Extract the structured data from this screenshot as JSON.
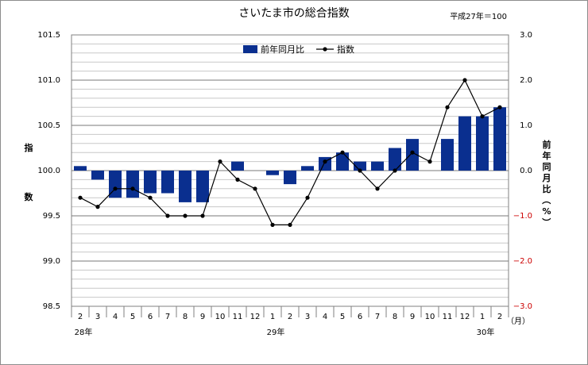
{
  "chart_data": {
    "type": "bar+line",
    "title": "さいたま市の総合指数",
    "base_note": "平成27年＝100",
    "categories": [
      "2",
      "3",
      "4",
      "5",
      "6",
      "7",
      "8",
      "9",
      "10",
      "11",
      "12",
      "1",
      "2",
      "3",
      "4",
      "5",
      "6",
      "7",
      "8",
      "9",
      "10",
      "11",
      "12",
      "1",
      "2"
    ],
    "year_labels": [
      {
        "label": "28年",
        "at_index": 0
      },
      {
        "label": "29年",
        "at_index": 11
      },
      {
        "label": "30年",
        "at_index": 23
      }
    ],
    "x_unit": "（月）",
    "ylabel_left": "指数",
    "ylabel_right": "前年同月比（%）",
    "left_axis": {
      "min": 98.5,
      "max": 101.5,
      "ticks": [
        "98.5",
        "99.0",
        "99.5",
        "100.0",
        "100.5",
        "101.0",
        "101.5"
      ]
    },
    "right_axis": {
      "min": -3.0,
      "max": 3.0,
      "ticks": [
        "−3.0",
        "−2.0",
        "−1.0",
        "0.0",
        "1.0",
        "2.0",
        "3.0"
      ]
    },
    "series": [
      {
        "name": "前年同月比",
        "kind": "bar",
        "axis": "left",
        "color": "#0a2f8f",
        "values": [
          100.05,
          99.9,
          99.7,
          99.7,
          99.75,
          99.75,
          99.65,
          99.65,
          null,
          100.1,
          null,
          99.95,
          99.85,
          100.05,
          100.15,
          100.2,
          100.1,
          100.1,
          100.25,
          100.35,
          null,
          100.35,
          100.6,
          100.6,
          100.7
        ]
      },
      {
        "name": "指数",
        "kind": "line",
        "axis": "right",
        "color": "#000000",
        "values": [
          -0.6,
          -0.8,
          -0.4,
          -0.4,
          -0.6,
          -1.0,
          -1.0,
          -1.0,
          0.2,
          -0.2,
          -0.4,
          -1.2,
          -1.2,
          -0.6,
          0.2,
          0.4,
          0.0,
          -0.4,
          0.0,
          0.4,
          0.2,
          1.4,
          2.0,
          1.2,
          1.4
        ]
      }
    ],
    "grid": true,
    "legend_position": "top-center"
  }
}
